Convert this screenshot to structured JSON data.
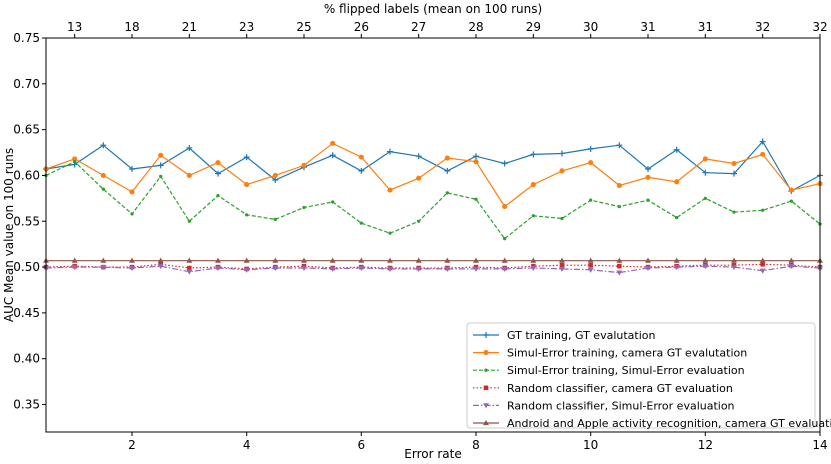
{
  "chart_data": {
    "type": "line",
    "xlabel": "Error rate",
    "ylabel": "AUC Mean value on 100 runs",
    "top_xlabel": "% flipped labels (mean on 100 runs)",
    "xlim": [
      0.5,
      14
    ],
    "ylim": [
      0.32,
      0.75
    ],
    "x_ticks": [
      2,
      4,
      6,
      8,
      10,
      12,
      14
    ],
    "y_ticks": [
      0.35,
      0.4,
      0.45,
      0.5,
      0.55,
      0.6,
      0.65,
      0.7,
      0.75
    ],
    "top_ticks": [
      {
        "x": 1.0,
        "label": "13"
      },
      {
        "x": 2.0,
        "label": "18"
      },
      {
        "x": 3.0,
        "label": "21"
      },
      {
        "x": 4.0,
        "label": "23"
      },
      {
        "x": 5.0,
        "label": "25"
      },
      {
        "x": 6.0,
        "label": "26"
      },
      {
        "x": 7.0,
        "label": "27"
      },
      {
        "x": 8.0,
        "label": "28"
      },
      {
        "x": 9.0,
        "label": "29"
      },
      {
        "x": 10.0,
        "label": "30"
      },
      {
        "x": 11.0,
        "label": "31"
      },
      {
        "x": 12.0,
        "label": "31"
      },
      {
        "x": 13.0,
        "label": "32"
      },
      {
        "x": 14.0,
        "label": "32"
      }
    ],
    "x": [
      0.5,
      1.0,
      1.5,
      2.0,
      2.5,
      3.0,
      3.5,
      4.0,
      4.5,
      5.0,
      5.5,
      6.0,
      6.5,
      7.0,
      7.5,
      8.0,
      8.5,
      9.0,
      9.5,
      10.0,
      10.5,
      11.0,
      11.5,
      12.0,
      12.5,
      13.0,
      13.5,
      14.0
    ],
    "series": [
      {
        "name": "GT training, GT evalutation",
        "color": "#1f77b4",
        "dash": "",
        "marker": "plus",
        "values": [
          0.607,
          0.612,
          0.633,
          0.607,
          0.611,
          0.63,
          0.602,
          0.62,
          0.595,
          0.609,
          0.622,
          0.605,
          0.626,
          0.621,
          0.605,
          0.621,
          0.613,
          0.623,
          0.624,
          0.629,
          0.633,
          0.607,
          0.628,
          0.603,
          0.602,
          0.637,
          0.583,
          0.6
        ]
      },
      {
        "name": "Simul-Error training, camera GT evalutation",
        "color": "#ff7f0e",
        "dash": "",
        "marker": "circle",
        "values": [
          0.607,
          0.618,
          0.6,
          0.582,
          0.622,
          0.6,
          0.614,
          0.59,
          0.6,
          0.611,
          0.635,
          0.62,
          0.584,
          0.597,
          0.619,
          0.615,
          0.566,
          0.59,
          0.605,
          0.614,
          0.589,
          0.598,
          0.593,
          0.618,
          0.613,
          0.623,
          0.584,
          0.591
        ]
      },
      {
        "name": "Simul-Error training, Simul-Error evaluation",
        "color": "#2ca02c",
        "dash": "4,2",
        "marker": "dot",
        "values": [
          0.6,
          0.615,
          0.585,
          0.558,
          0.599,
          0.55,
          0.578,
          0.557,
          0.552,
          0.565,
          0.571,
          0.548,
          0.537,
          0.55,
          0.581,
          0.574,
          0.531,
          0.556,
          0.553,
          0.573,
          0.566,
          0.573,
          0.554,
          0.575,
          0.56,
          0.562,
          0.572,
          0.547
        ]
      },
      {
        "name": "Random classifier, camera GT evaluation",
        "color": "#d62728",
        "dash": "1.5,2",
        "marker": "square",
        "values": [
          0.5,
          0.501,
          0.5,
          0.5,
          0.503,
          0.499,
          0.5,
          0.498,
          0.5,
          0.501,
          0.499,
          0.5,
          0.499,
          0.499,
          0.499,
          0.5,
          0.499,
          0.501,
          0.502,
          0.502,
          0.501,
          0.5,
          0.501,
          0.502,
          0.502,
          0.503,
          0.502,
          0.5
        ]
      },
      {
        "name": "Random classifier, Simul-Error evaluation",
        "color": "#9467bd",
        "dash": "6,2,1.5,2",
        "marker": "triangle-down",
        "values": [
          0.499,
          0.5,
          0.5,
          0.499,
          0.501,
          0.495,
          0.499,
          0.497,
          0.499,
          0.499,
          0.498,
          0.499,
          0.498,
          0.498,
          0.498,
          0.498,
          0.498,
          0.499,
          0.498,
          0.497,
          0.494,
          0.499,
          0.5,
          0.501,
          0.5,
          0.496,
          0.501,
          0.499
        ]
      },
      {
        "name": "Android and Apple activity recognition, camera GT evaluation",
        "color": "#8c564b",
        "dash": "",
        "marker": "triangle-up",
        "values": [
          0.507,
          0.507,
          0.507,
          0.507,
          0.507,
          0.507,
          0.507,
          0.507,
          0.507,
          0.507,
          0.507,
          0.507,
          0.507,
          0.507,
          0.507,
          0.507,
          0.507,
          0.507,
          0.507,
          0.507,
          0.507,
          0.507,
          0.507,
          0.507,
          0.507,
          0.507,
          0.507,
          0.507
        ]
      }
    ],
    "legend_placement": "lower-right",
    "grid": false
  }
}
